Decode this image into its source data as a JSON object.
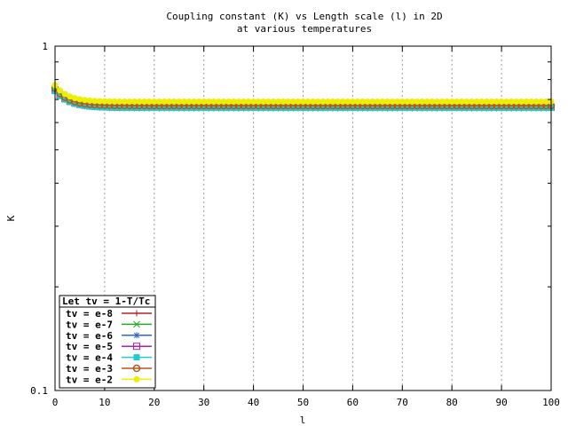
{
  "chart_data": {
    "type": "line",
    "title": "Coupling constant (K) vs Length scale (l) in 2D",
    "subtitle": "at various temperatures",
    "xlabel": "l",
    "ylabel": "K",
    "xlim": [
      0,
      100
    ],
    "ylim": [
      0.1,
      1
    ],
    "yscale": "log",
    "grid": "vertical dashed",
    "xticks": [
      0,
      10,
      20,
      30,
      40,
      50,
      60,
      70,
      80,
      90,
      100
    ],
    "xtick_labels": [
      "0",
      "10",
      "20",
      "30",
      "40",
      "50",
      "60",
      "70",
      "80",
      "90",
      "100"
    ],
    "ytick_labels": [
      "1",
      "0.1"
    ],
    "legend_title": "Let tv = 1-T/Tc",
    "legend_position": "bottom-left",
    "series": [
      {
        "name": "tv = e-8",
        "color": "#b22222",
        "marker": "plus",
        "K0": 0.75,
        "Kinf": 0.67,
        "tau": 2.8
      },
      {
        "name": "tv = e-7",
        "color": "#22aa22",
        "marker": "x",
        "K0": 0.745,
        "Kinf": 0.665,
        "tau": 2.8
      },
      {
        "name": "tv = e-6",
        "color": "#3366cc",
        "marker": "star",
        "K0": 0.74,
        "Kinf": 0.66,
        "tau": 2.8
      },
      {
        "name": "tv = e-5",
        "color": "#aa22aa",
        "marker": "box",
        "K0": 0.745,
        "Kinf": 0.664,
        "tau": 2.8
      },
      {
        "name": "tv = e-4",
        "color": "#22cccc",
        "marker": "filled-box",
        "K0": 0.74,
        "Kinf": 0.662,
        "tau": 2.8
      },
      {
        "name": "tv = e-3",
        "color": "#b8561a",
        "marker": "circle",
        "K0": 0.755,
        "Kinf": 0.672,
        "tau": 2.6
      },
      {
        "name": "tv = e-2",
        "color": "#eeee00",
        "marker": "filled-circle",
        "K0": 0.77,
        "Kinf": 0.69,
        "tau": 2.5
      }
    ]
  }
}
